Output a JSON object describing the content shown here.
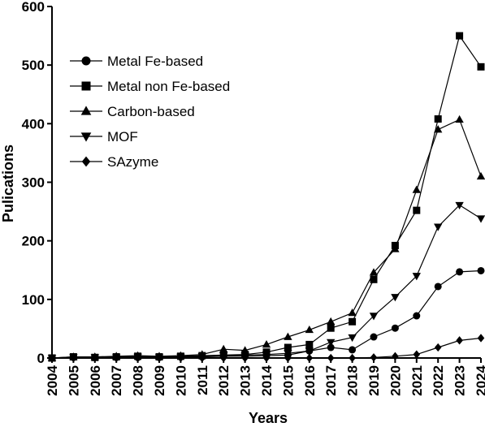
{
  "chart_data": {
    "type": "line",
    "xlabel": "Years",
    "ylabel": "Pulications",
    "ylim": [
      0,
      600
    ],
    "yticks": [
      0,
      100,
      200,
      300,
      400,
      500,
      600
    ],
    "x": [
      "2004",
      "2005",
      "2006",
      "2007",
      "2008",
      "2009",
      "2010",
      "2011",
      "2012",
      "2013",
      "2014",
      "2015",
      "2016",
      "2017",
      "2018",
      "2019",
      "2020",
      "2021",
      "2022",
      "2023",
      "2024"
    ],
    "legend_position": "top-left",
    "grid": false,
    "series": [
      {
        "name": "Metal Fe-based",
        "marker": "circle",
        "values": [
          0,
          1,
          1,
          1,
          1,
          1,
          2,
          2,
          3,
          3,
          4,
          5,
          12,
          18,
          14,
          36,
          51,
          72,
          122,
          147,
          149
        ]
      },
      {
        "name": "Metal non Fe-based",
        "marker": "square",
        "values": [
          0,
          2,
          1,
          2,
          3,
          2,
          3,
          4,
          5,
          6,
          10,
          18,
          23,
          51,
          62,
          134,
          192,
          252,
          408,
          550,
          497
        ]
      },
      {
        "name": "Carbon-based",
        "marker": "triangle-up",
        "values": [
          0,
          2,
          2,
          3,
          4,
          3,
          4,
          6,
          15,
          13,
          23,
          36,
          48,
          62,
          77,
          146,
          186,
          287,
          390,
          407,
          310
        ]
      },
      {
        "name": "MOF",
        "marker": "triangle-down",
        "values": [
          0,
          1,
          1,
          1,
          2,
          1,
          2,
          3,
          4,
          5,
          6,
          8,
          12,
          27,
          35,
          72,
          104,
          140,
          224,
          261,
          238
        ]
      },
      {
        "name": "SAzyme",
        "marker": "diamond",
        "values": [
          0,
          0,
          0,
          0,
          0,
          0,
          0,
          0,
          0,
          0,
          0,
          0,
          0,
          0,
          0,
          1,
          3,
          6,
          18,
          30,
          34
        ]
      }
    ]
  }
}
